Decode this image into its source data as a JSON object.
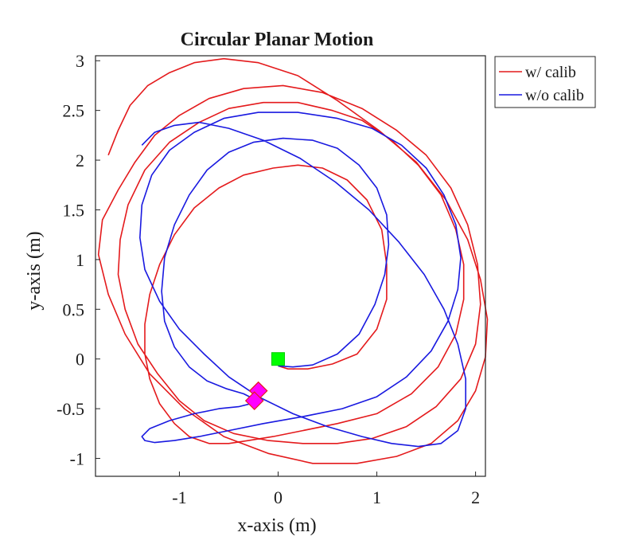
{
  "chart_data": {
    "type": "line",
    "title": "Circular Planar Motion",
    "xlabel": "x-axis (m)",
    "ylabel": "y-axis (m)",
    "xlim": [
      -1.85,
      2.1
    ],
    "ylim": [
      -1.18,
      3.05
    ],
    "xticks": [
      -1,
      0,
      1,
      2
    ],
    "xtick_labels": [
      "-1",
      "0",
      "1",
      "2"
    ],
    "yticks": [
      -1,
      -0.5,
      0,
      0.5,
      1,
      1.5,
      2,
      2.5,
      3
    ],
    "ytick_labels": [
      "-1",
      "-0.5",
      "0",
      "0.5",
      "1",
      "1.5",
      "2",
      "2.5",
      "3"
    ],
    "grid": false,
    "legend_position": "top-right",
    "series": [
      {
        "name": "w/ calib",
        "color": "#e41a1c",
        "x": [
          0.0,
          0.1,
          0.3,
          0.55,
          0.8,
          1.0,
          1.1,
          1.1,
          1.05,
          0.9,
          0.7,
          0.45,
          0.2,
          -0.05,
          -0.35,
          -0.6,
          -0.85,
          -1.05,
          -1.2,
          -1.3,
          -1.35,
          -1.35,
          -1.3,
          -1.2,
          -1.05,
          -0.9,
          -0.7,
          -0.5,
          -0.3,
          -0.05,
          0.25,
          0.6,
          1.0,
          1.35,
          1.62,
          1.8,
          1.88,
          1.88,
          1.8,
          1.65,
          1.42,
          1.15,
          0.85,
          0.55,
          0.2,
          -0.15,
          -0.5,
          -0.8,
          -1.1,
          -1.35,
          -1.52,
          -1.6,
          -1.62,
          -1.55,
          -1.42,
          -1.22,
          -1.0,
          -0.75,
          -0.45,
          -0.1,
          0.25,
          0.6,
          0.95,
          1.3,
          1.6,
          1.85,
          2.0,
          2.05,
          2.02,
          1.92,
          1.75,
          1.5,
          1.2,
          0.85,
          0.45,
          0.05,
          -0.35,
          -0.7,
          -1.0,
          -1.25,
          -1.45,
          -1.62,
          -1.78,
          -1.82,
          -1.72,
          -1.55,
          -1.3,
          -0.95,
          -0.55,
          -0.1,
          0.35,
          0.8,
          1.2,
          1.55,
          1.82,
          2.0,
          2.1,
          2.12,
          2.05,
          1.92,
          1.7,
          1.4,
          1.02,
          0.6,
          0.2,
          -0.2,
          -0.55,
          -0.85,
          -1.1,
          -1.32,
          -1.5,
          -1.62,
          -1.72
        ],
        "y": [
          -0.07,
          -0.1,
          -0.1,
          -0.05,
          0.05,
          0.3,
          0.6,
          0.95,
          1.3,
          1.6,
          1.8,
          1.92,
          1.95,
          1.92,
          1.85,
          1.72,
          1.52,
          1.25,
          0.95,
          0.65,
          0.35,
          0.05,
          -0.2,
          -0.45,
          -0.65,
          -0.78,
          -0.85,
          -0.85,
          -0.82,
          -0.78,
          -0.72,
          -0.65,
          -0.55,
          -0.35,
          -0.08,
          0.25,
          0.6,
          0.95,
          1.3,
          1.65,
          1.95,
          2.2,
          2.4,
          2.5,
          2.58,
          2.58,
          2.52,
          2.38,
          2.18,
          1.9,
          1.55,
          1.2,
          0.85,
          0.5,
          0.15,
          -0.15,
          -0.42,
          -0.62,
          -0.75,
          -0.82,
          -0.85,
          -0.85,
          -0.8,
          -0.68,
          -0.48,
          -0.2,
          0.15,
          0.55,
          0.95,
          1.35,
          1.72,
          2.05,
          2.3,
          2.52,
          2.68,
          2.75,
          2.72,
          2.62,
          2.45,
          2.25,
          1.98,
          1.7,
          1.4,
          1.05,
          0.65,
          0.25,
          -0.15,
          -0.5,
          -0.78,
          -0.95,
          -1.05,
          -1.05,
          -0.98,
          -0.85,
          -0.62,
          -0.32,
          0.02,
          0.4,
          0.8,
          1.2,
          1.6,
          1.98,
          2.3,
          2.6,
          2.85,
          2.98,
          3.02,
          2.98,
          2.88,
          2.75,
          2.55,
          2.3,
          2.05
        ]
      },
      {
        "name": "w/o calib",
        "color": "#1919e0",
        "x": [
          0.0,
          0.15,
          0.35,
          0.6,
          0.82,
          0.98,
          1.08,
          1.12,
          1.1,
          1.0,
          0.82,
          0.6,
          0.35,
          0.05,
          -0.25,
          -0.5,
          -0.72,
          -0.9,
          -1.05,
          -1.15,
          -1.18,
          -1.15,
          -1.05,
          -0.9,
          -0.72,
          -0.52,
          -0.35,
          -0.25,
          -0.28,
          -0.4,
          -0.6,
          -0.85,
          -1.1,
          -1.3,
          -1.38,
          -1.35,
          -1.25,
          -1.05,
          -0.8,
          -0.5,
          -0.15,
          0.25,
          0.65,
          1.0,
          1.3,
          1.55,
          1.72,
          1.82,
          1.85,
          1.8,
          1.68,
          1.5,
          1.25,
          0.95,
          0.6,
          0.2,
          -0.2,
          -0.55,
          -0.85,
          -1.1,
          -1.28,
          -1.38,
          -1.4,
          -1.35,
          -1.2,
          -1.0,
          -0.75,
          -0.5,
          -0.2,
          0.15,
          0.5,
          0.85,
          1.15,
          1.42,
          1.65,
          1.82,
          1.9,
          1.9,
          1.82,
          1.68,
          1.48,
          1.22,
          0.92,
          0.58,
          0.22,
          -0.15,
          -0.5,
          -0.8,
          -1.05,
          -1.25,
          -1.38
        ],
        "y": [
          -0.07,
          -0.08,
          -0.06,
          0.05,
          0.25,
          0.55,
          0.85,
          1.15,
          1.45,
          1.72,
          1.95,
          2.12,
          2.2,
          2.22,
          2.18,
          2.08,
          1.9,
          1.65,
          1.35,
          1.02,
          0.68,
          0.38,
          0.12,
          -0.08,
          -0.22,
          -0.3,
          -0.35,
          -0.4,
          -0.45,
          -0.48,
          -0.5,
          -0.55,
          -0.62,
          -0.7,
          -0.78,
          -0.82,
          -0.84,
          -0.82,
          -0.78,
          -0.72,
          -0.65,
          -0.58,
          -0.5,
          -0.38,
          -0.18,
          0.08,
          0.38,
          0.7,
          1.02,
          1.35,
          1.65,
          1.92,
          2.15,
          2.32,
          2.42,
          2.48,
          2.48,
          2.42,
          2.28,
          2.1,
          1.85,
          1.55,
          1.22,
          0.9,
          0.58,
          0.3,
          0.05,
          -0.18,
          -0.38,
          -0.55,
          -0.68,
          -0.78,
          -0.85,
          -0.88,
          -0.85,
          -0.72,
          -0.5,
          -0.2,
          0.15,
          0.5,
          0.85,
          1.18,
          1.5,
          1.78,
          2.02,
          2.2,
          2.32,
          2.38,
          2.35,
          2.28,
          2.15
        ]
      }
    ],
    "markers": [
      {
        "shape": "square",
        "color": "#00ff00",
        "x": 0.0,
        "y": 0.0
      },
      {
        "shape": "diamond",
        "color": "#ff00ff",
        "x": -0.2,
        "y": -0.32
      },
      {
        "shape": "diamond",
        "color": "#ff00ff",
        "x": -0.24,
        "y": -0.42
      }
    ]
  }
}
